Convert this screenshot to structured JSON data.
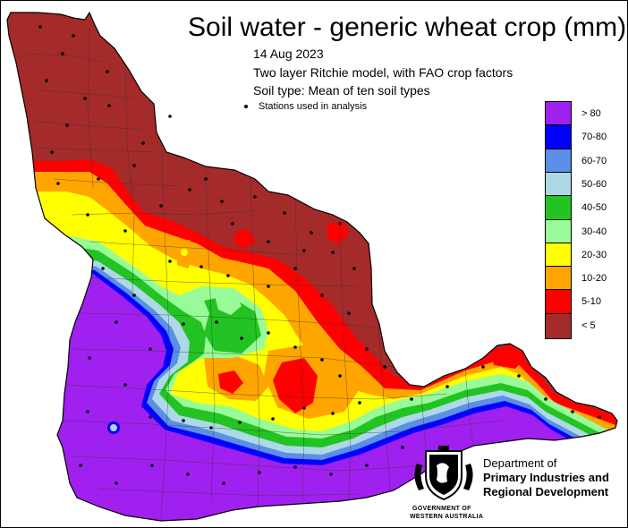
{
  "title": "Soil water - generic wheat crop (mm)",
  "date": "14 Aug 2023",
  "model": "Two layer Ritchie model, with FAO crop factors",
  "soil_type": "Soil type: Mean of ten soil types",
  "stations_label": "Stations used in analysis",
  "legend": [
    {
      "label": "> 80",
      "color": "#a020f0"
    },
    {
      "label": "70-80",
      "color": "#0000ff"
    },
    {
      "label": "60-70",
      "color": "#5b8fe8"
    },
    {
      "label": "50-60",
      "color": "#add8e6"
    },
    {
      "label": "40-50",
      "color": "#22c322"
    },
    {
      "label": "30-40",
      "color": "#98fb98"
    },
    {
      "label": "20-30",
      "color": "#ffff00"
    },
    {
      "label": "10-20",
      "color": "#ffa500"
    },
    {
      "label": "5-10",
      "color": "#ff0000"
    },
    {
      "label": "< 5",
      "color": "#a52a2a"
    }
  ],
  "department": {
    "line1": "Department of",
    "line2": "Primary Industries and",
    "line3": "Regional Development"
  },
  "government": {
    "line1": "GOVERNMENT OF",
    "line2": "WESTERN AUSTRALIA"
  }
}
